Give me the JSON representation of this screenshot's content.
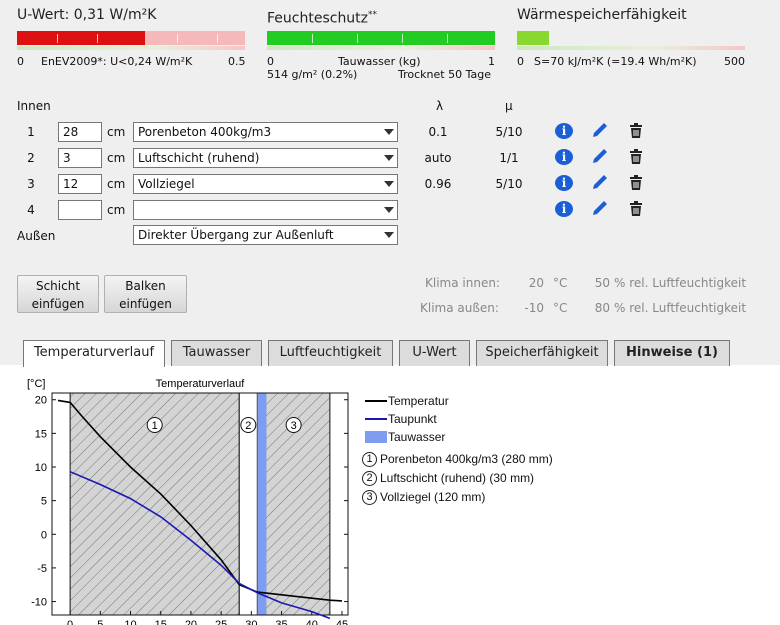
{
  "meters": {
    "uwert": {
      "title": "U-Wert: 0,31 W/m²K",
      "left": "0",
      "mid": "EnEV2009*: U<0,24 W/m²K",
      "right": "0.5"
    },
    "feuchte": {
      "title": "Feuchteschutz",
      "title_sup": "**",
      "left": "0",
      "mid": "Tauwasser (kg)",
      "right": "1",
      "line2a": "514 g/m² (0.2%)",
      "line2b": "Trocknet 50 Tage"
    },
    "waerme": {
      "title": "Wärmespeicherfähigkeit",
      "left": "0",
      "mid": "S=70 kJ/m²K (=19.4 Wh/m²K)",
      "right": "500"
    },
    "colors": {
      "red": "#dd1111",
      "green": "#22cc22",
      "lightgreen": "#88d830"
    }
  },
  "layers": {
    "header_innen": "Innen",
    "header_lambda": "λ",
    "header_mu": "μ",
    "unit": "cm",
    "rows": [
      {
        "num": "1",
        "thickness": "28",
        "material": "Porenbeton 400kg/m3",
        "lambda": "0.1",
        "mu": "5/10"
      },
      {
        "num": "2",
        "thickness": "3",
        "material": "Luftschicht (ruhend)",
        "lambda": "auto",
        "mu": "1/1"
      },
      {
        "num": "3",
        "thickness": "12",
        "material": "Vollziegel",
        "lambda": "0.96",
        "mu": "5/10"
      },
      {
        "num": "4",
        "thickness": "",
        "material": "",
        "lambda": "",
        "mu": ""
      }
    ],
    "aussen_label": "Außen",
    "aussen_value": "Direkter Übergang zur Außenluft"
  },
  "buttons": {
    "schicht": [
      "Schicht",
      "einfügen"
    ],
    "balken": [
      "Balken",
      "einfügen"
    ]
  },
  "climate": {
    "innen": {
      "label": "Klima innen:",
      "temp": "20",
      "unit": "°C",
      "rh": "50",
      "rhlabel": "% rel. Luftfeuchtigkeit"
    },
    "aussen": {
      "label": "Klima außen:",
      "temp": "-10",
      "unit": "°C",
      "rh": "80",
      "rhlabel": "% rel. Luftfeuchtigkeit"
    }
  },
  "tabs": [
    "Temperaturverlauf",
    "Tauwasser",
    "Luftfeuchtigkeit",
    "U-Wert",
    "Speicherfähigkeit",
    "Hinweise (1)"
  ],
  "chart_data": {
    "type": "line",
    "title": "Temperaturverlauf",
    "ylabel": "[°C]",
    "xlim": [
      -3,
      46
    ],
    "ylim": [
      -12,
      21
    ],
    "xticks": [
      0,
      5,
      10,
      15,
      20,
      25,
      30,
      35,
      40,
      45
    ],
    "yticks": [
      20,
      15,
      10,
      5,
      0,
      -5,
      -10
    ],
    "layers": [
      {
        "id": "1",
        "from": 0,
        "to": 28,
        "hatched": true
      },
      {
        "id": "2",
        "from": 28,
        "to": 31,
        "hatched": false
      },
      {
        "id": "3",
        "from": 31,
        "to": 43,
        "hatched": true
      }
    ],
    "tauwasser_zone": [
      31,
      32.5
    ],
    "series": [
      {
        "name": "Temperatur",
        "color": "#000000",
        "x": [
          -2,
          0,
          2,
          5,
          10,
          15,
          20,
          25,
          28,
          31,
          35,
          40,
          43,
          45
        ],
        "y": [
          19.9,
          19.6,
          17.5,
          14.5,
          10,
          6,
          1.3,
          -3.8,
          -7.5,
          -8.6,
          -9,
          -9.5,
          -9.8,
          -9.9
        ]
      },
      {
        "name": "Taupunkt",
        "color": "#1a1ab0",
        "x": [
          0,
          5,
          10,
          15,
          20,
          25,
          28,
          31,
          35,
          40,
          43
        ],
        "y": [
          9.3,
          7.4,
          5.3,
          2.6,
          -0.9,
          -4.6,
          -7.3,
          -8.7,
          -10.2,
          -11.5,
          -12.5
        ]
      }
    ],
    "legend": [
      {
        "label": "Temperatur"
      },
      {
        "label": "Taupunkt"
      },
      {
        "label": "Tauwasser"
      }
    ],
    "layer_legend": [
      "Porenbeton 400kg/m3 (280 mm)",
      "Luftschicht (ruhend) (30 mm)",
      "Vollziegel (120 mm)"
    ]
  }
}
